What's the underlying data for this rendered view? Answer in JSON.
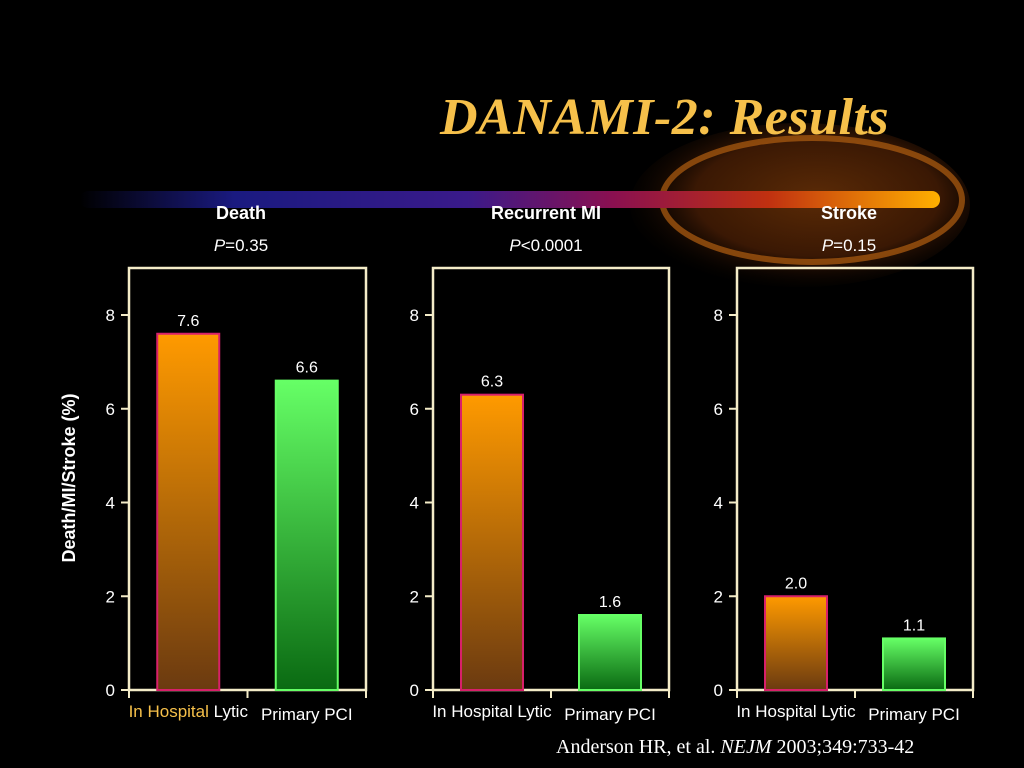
{
  "slide": {
    "title": "DANAMI-2: Results",
    "citation_authors": "Anderson HR, et al.",
    "citation_journal": "NEJM",
    "citation_detail": "2003;349:733-42"
  },
  "colors": {
    "background": "#000000",
    "title": "#f6c04a",
    "lytic_bar_top": "#ff9a00",
    "lytic_bar_bottom": "#6b3a10",
    "lytic_bar_border": "#d8206a",
    "pci_bar_top": "#66ff66",
    "pci_bar_bottom": "#0a6a12",
    "axis": "#f4ecc8",
    "highlight_text": "#f6c04a"
  },
  "chart_data": [
    {
      "type": "bar",
      "title": "Death",
      "p_label": "P",
      "p_value": "=0.35",
      "ylabel": "Death/MI/Stroke (%)",
      "ylim": [
        0,
        9
      ],
      "yticks": [
        0,
        2,
        4,
        6,
        8
      ],
      "categories": [
        "In Hospital Lytic",
        "Primary PCI"
      ],
      "category_parts": [
        [
          "In Hospital",
          " Lytic"
        ],
        [
          "Primary PCI"
        ]
      ],
      "values": [
        7.6,
        6.6
      ],
      "value_labels": [
        "7.6",
        "6.6"
      ]
    },
    {
      "type": "bar",
      "title": "Recurrent MI",
      "p_label": "P",
      "p_value": "<0.0001",
      "ylim": [
        0,
        9
      ],
      "yticks": [
        0,
        2,
        4,
        6,
        8
      ],
      "categories": [
        "In Hospital Lytic",
        "Primary PCI"
      ],
      "category_parts": [
        [
          "In Hospital Lytic"
        ],
        [
          "Primary PCI"
        ]
      ],
      "values": [
        6.3,
        1.6
      ],
      "value_labels": [
        "6.3",
        "1.6"
      ]
    },
    {
      "type": "bar",
      "title": "Stroke",
      "p_label": "P",
      "p_value": "=0.15",
      "ylim": [
        0,
        9
      ],
      "yticks": [
        0,
        2,
        4,
        6,
        8
      ],
      "categories": [
        "In Hospital Lytic",
        "Primary PCI"
      ],
      "category_parts": [
        [
          "In Hospital Lytic"
        ],
        [
          "Primary PCI"
        ]
      ],
      "values": [
        2.0,
        1.1
      ],
      "value_labels": [
        "2.0",
        "1.1"
      ]
    }
  ]
}
